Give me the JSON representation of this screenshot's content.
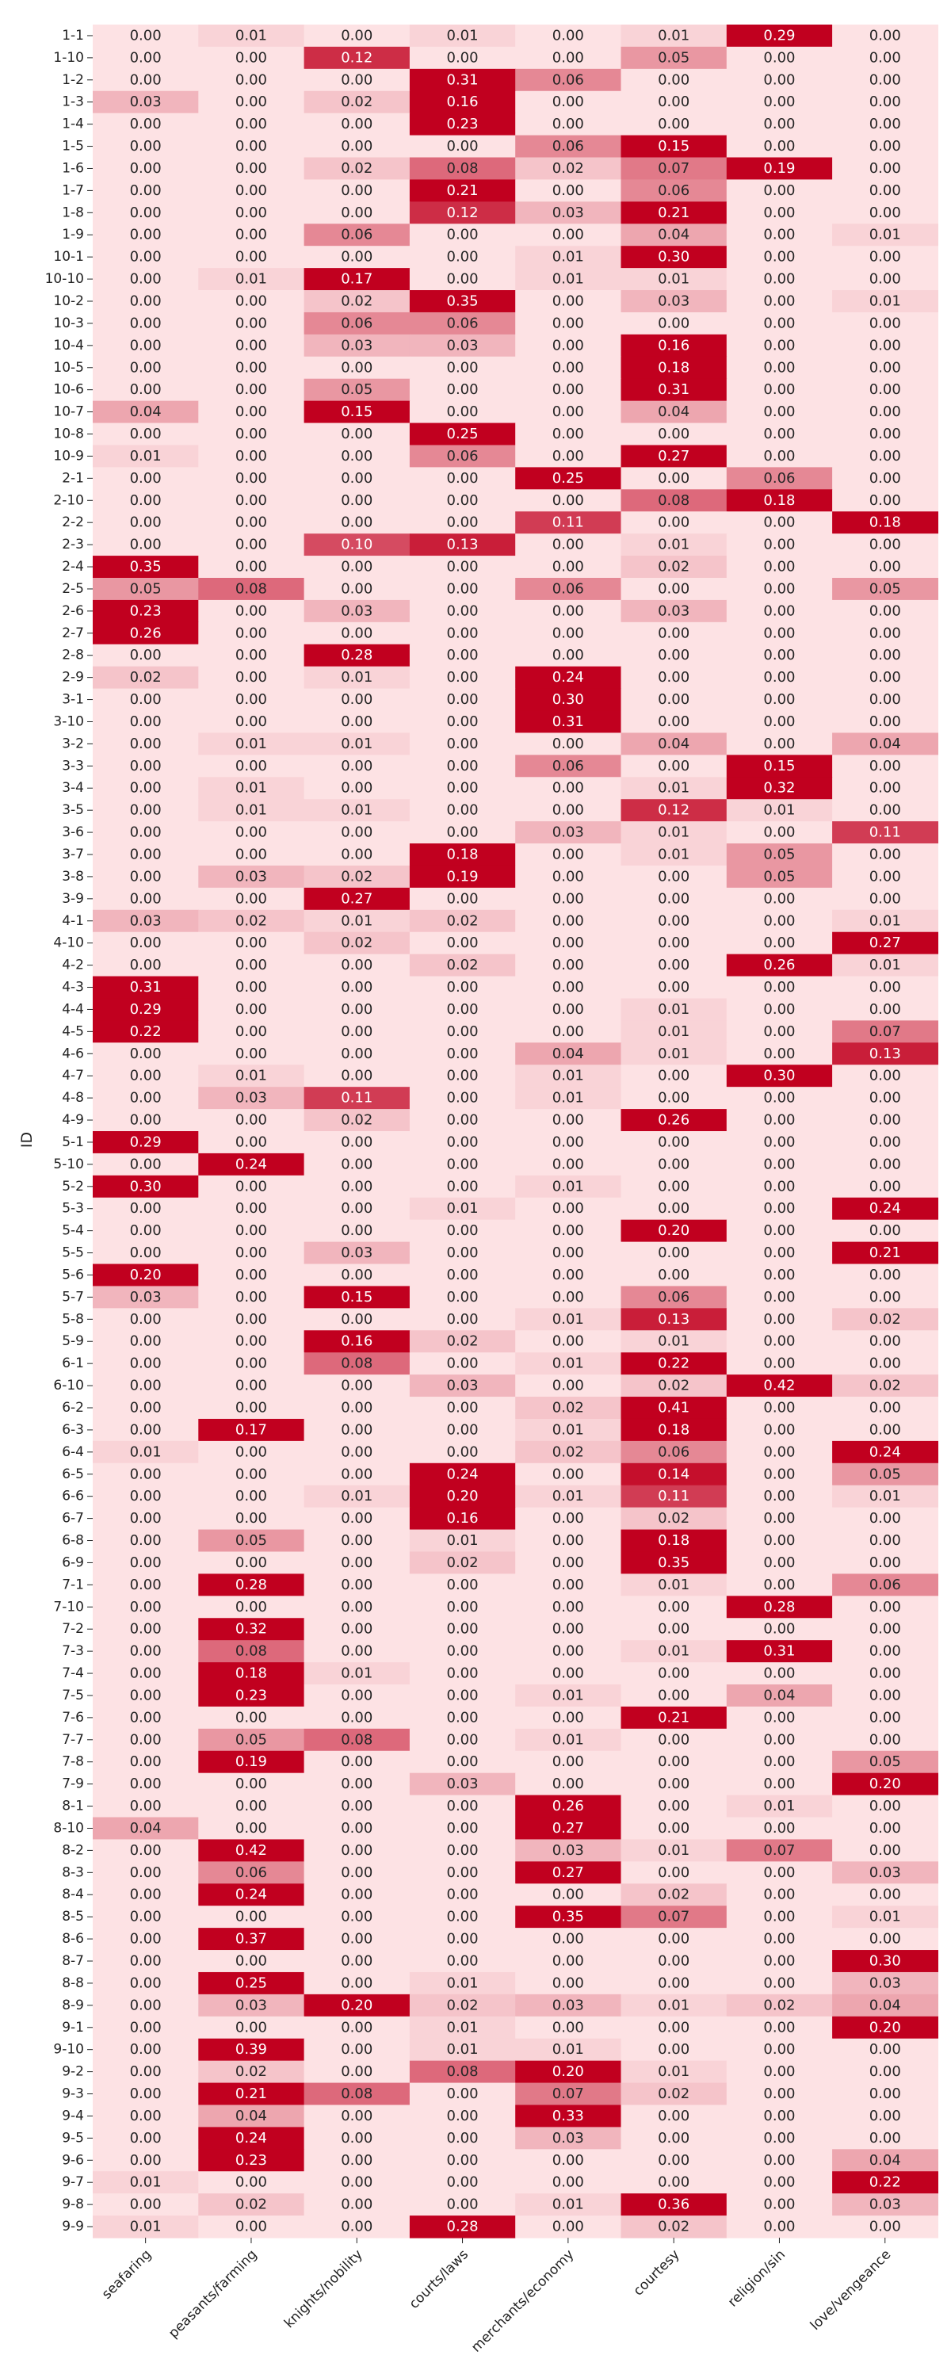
{
  "chart_data": {
    "type": "heatmap",
    "ylabel": "ID",
    "xlabel": "",
    "columns": [
      "seafaring",
      "peasants/farming",
      "knights/nobility",
      "courts/laws",
      "merchants/economy",
      "courtesy",
      "religion/sin",
      "love/vengeance"
    ],
    "rows": [
      "1-1",
      "1-10",
      "1-2",
      "1-3",
      "1-4",
      "1-5",
      "1-6",
      "1-7",
      "1-8",
      "1-9",
      "10-1",
      "10-10",
      "10-2",
      "10-3",
      "10-4",
      "10-5",
      "10-6",
      "10-7",
      "10-8",
      "10-9",
      "2-1",
      "2-10",
      "2-2",
      "2-3",
      "2-4",
      "2-5",
      "2-6",
      "2-7",
      "2-8",
      "2-9",
      "3-1",
      "3-10",
      "3-2",
      "3-3",
      "3-4",
      "3-5",
      "3-6",
      "3-7",
      "3-8",
      "3-9",
      "4-1",
      "4-10",
      "4-2",
      "4-3",
      "4-4",
      "4-5",
      "4-6",
      "4-7",
      "4-8",
      "4-9",
      "5-1",
      "5-10",
      "5-2",
      "5-3",
      "5-4",
      "5-5",
      "5-6",
      "5-7",
      "5-8",
      "5-9",
      "6-1",
      "6-10",
      "6-2",
      "6-3",
      "6-4",
      "6-5",
      "6-6",
      "6-7",
      "6-8",
      "6-9",
      "7-1",
      "7-10",
      "7-2",
      "7-3",
      "7-4",
      "7-5",
      "7-6",
      "7-7",
      "7-8",
      "7-9",
      "8-1",
      "8-10",
      "8-2",
      "8-3",
      "8-4",
      "8-5",
      "8-6",
      "8-7",
      "8-8",
      "8-9",
      "9-1",
      "9-10",
      "9-2",
      "9-3",
      "9-4",
      "9-5",
      "9-6",
      "9-7",
      "9-8",
      "9-9"
    ],
    "values": [
      [
        0.0,
        0.01,
        0.0,
        0.01,
        0.0,
        0.01,
        0.29,
        0.0
      ],
      [
        0.0,
        0.0,
        0.12,
        0.0,
        0.0,
        0.05,
        0.0,
        0.0
      ],
      [
        0.0,
        0.0,
        0.0,
        0.31,
        0.06,
        0.0,
        0.0,
        0.0
      ],
      [
        0.03,
        0.0,
        0.02,
        0.16,
        0.0,
        0.0,
        0.0,
        0.0
      ],
      [
        0.0,
        0.0,
        0.0,
        0.23,
        0.0,
        0.0,
        0.0,
        0.0
      ],
      [
        0.0,
        0.0,
        0.0,
        0.0,
        0.06,
        0.15,
        0.0,
        0.0
      ],
      [
        0.0,
        0.0,
        0.02,
        0.08,
        0.02,
        0.07,
        0.19,
        0.0
      ],
      [
        0.0,
        0.0,
        0.0,
        0.21,
        0.0,
        0.06,
        0.0,
        0.0
      ],
      [
        0.0,
        0.0,
        0.0,
        0.12,
        0.03,
        0.21,
        0.0,
        0.0
      ],
      [
        0.0,
        0.0,
        0.06,
        0.0,
        0.0,
        0.04,
        0.0,
        0.01
      ],
      [
        0.0,
        0.0,
        0.0,
        0.0,
        0.01,
        0.3,
        0.0,
        0.0
      ],
      [
        0.0,
        0.01,
        0.17,
        0.0,
        0.01,
        0.01,
        0.0,
        0.0
      ],
      [
        0.0,
        0.0,
        0.02,
        0.35,
        0.0,
        0.03,
        0.0,
        0.01
      ],
      [
        0.0,
        0.0,
        0.06,
        0.06,
        0.0,
        0.0,
        0.0,
        0.0
      ],
      [
        0.0,
        0.0,
        0.03,
        0.03,
        0.0,
        0.16,
        0.0,
        0.0
      ],
      [
        0.0,
        0.0,
        0.0,
        0.0,
        0.0,
        0.18,
        0.0,
        0.0
      ],
      [
        0.0,
        0.0,
        0.05,
        0.0,
        0.0,
        0.31,
        0.0,
        0.0
      ],
      [
        0.04,
        0.0,
        0.15,
        0.0,
        0.0,
        0.04,
        0.0,
        0.0
      ],
      [
        0.0,
        0.0,
        0.0,
        0.25,
        0.0,
        0.0,
        0.0,
        0.0
      ],
      [
        0.01,
        0.0,
        0.0,
        0.06,
        0.0,
        0.27,
        0.0,
        0.0
      ],
      [
        0.0,
        0.0,
        0.0,
        0.0,
        0.25,
        0.0,
        0.06,
        0.0
      ],
      [
        0.0,
        0.0,
        0.0,
        0.0,
        0.0,
        0.08,
        0.18,
        0.0
      ],
      [
        0.0,
        0.0,
        0.0,
        0.0,
        0.11,
        0.0,
        0.0,
        0.18
      ],
      [
        0.0,
        0.0,
        0.1,
        0.13,
        0.0,
        0.01,
        0.0,
        0.0
      ],
      [
        0.35,
        0.0,
        0.0,
        0.0,
        0.0,
        0.02,
        0.0,
        0.0
      ],
      [
        0.05,
        0.08,
        0.0,
        0.0,
        0.06,
        0.0,
        0.0,
        0.05
      ],
      [
        0.23,
        0.0,
        0.03,
        0.0,
        0.0,
        0.03,
        0.0,
        0.0
      ],
      [
        0.26,
        0.0,
        0.0,
        0.0,
        0.0,
        0.0,
        0.0,
        0.0
      ],
      [
        0.0,
        0.0,
        0.28,
        0.0,
        0.0,
        0.0,
        0.0,
        0.0
      ],
      [
        0.02,
        0.0,
        0.01,
        0.0,
        0.24,
        0.0,
        0.0,
        0.0
      ],
      [
        0.0,
        0.0,
        0.0,
        0.0,
        0.3,
        0.0,
        0.0,
        0.0
      ],
      [
        0.0,
        0.0,
        0.0,
        0.0,
        0.31,
        0.0,
        0.0,
        0.0
      ],
      [
        0.0,
        0.01,
        0.01,
        0.0,
        0.0,
        0.04,
        0.0,
        0.04
      ],
      [
        0.0,
        0.0,
        0.0,
        0.0,
        0.06,
        0.0,
        0.15,
        0.0
      ],
      [
        0.0,
        0.01,
        0.0,
        0.0,
        0.0,
        0.01,
        0.32,
        0.0
      ],
      [
        0.0,
        0.01,
        0.01,
        0.0,
        0.0,
        0.12,
        0.01,
        0.0
      ],
      [
        0.0,
        0.0,
        0.0,
        0.0,
        0.03,
        0.01,
        0.0,
        0.11
      ],
      [
        0.0,
        0.0,
        0.0,
        0.18,
        0.0,
        0.01,
        0.05,
        0.0
      ],
      [
        0.0,
        0.03,
        0.02,
        0.19,
        0.0,
        0.0,
        0.05,
        0.0
      ],
      [
        0.0,
        0.0,
        0.27,
        0.0,
        0.0,
        0.0,
        0.0,
        0.0
      ],
      [
        0.03,
        0.02,
        0.01,
        0.02,
        0.0,
        0.0,
        0.0,
        0.01
      ],
      [
        0.0,
        0.0,
        0.02,
        0.0,
        0.0,
        0.0,
        0.0,
        0.27
      ],
      [
        0.0,
        0.0,
        0.0,
        0.02,
        0.0,
        0.0,
        0.26,
        0.01
      ],
      [
        0.31,
        0.0,
        0.0,
        0.0,
        0.0,
        0.0,
        0.0,
        0.0
      ],
      [
        0.29,
        0.0,
        0.0,
        0.0,
        0.0,
        0.01,
        0.0,
        0.0
      ],
      [
        0.22,
        0.0,
        0.0,
        0.0,
        0.0,
        0.01,
        0.0,
        0.07
      ],
      [
        0.0,
        0.0,
        0.0,
        0.0,
        0.04,
        0.01,
        0.0,
        0.13
      ],
      [
        0.0,
        0.01,
        0.0,
        0.0,
        0.01,
        0.0,
        0.3,
        0.0
      ],
      [
        0.0,
        0.03,
        0.11,
        0.0,
        0.01,
        0.0,
        0.0,
        0.0
      ],
      [
        0.0,
        0.0,
        0.02,
        0.0,
        0.0,
        0.26,
        0.0,
        0.0
      ],
      [
        0.29,
        0.0,
        0.0,
        0.0,
        0.0,
        0.0,
        0.0,
        0.0
      ],
      [
        0.0,
        0.24,
        0.0,
        0.0,
        0.0,
        0.0,
        0.0,
        0.0
      ],
      [
        0.3,
        0.0,
        0.0,
        0.0,
        0.01,
        0.0,
        0.0,
        0.0
      ],
      [
        0.0,
        0.0,
        0.0,
        0.01,
        0.0,
        0.0,
        0.0,
        0.24
      ],
      [
        0.0,
        0.0,
        0.0,
        0.0,
        0.0,
        0.2,
        0.0,
        0.0
      ],
      [
        0.0,
        0.0,
        0.03,
        0.0,
        0.0,
        0.0,
        0.0,
        0.21
      ],
      [
        0.2,
        0.0,
        0.0,
        0.0,
        0.0,
        0.0,
        0.0,
        0.0
      ],
      [
        0.03,
        0.0,
        0.15,
        0.0,
        0.0,
        0.06,
        0.0,
        0.0
      ],
      [
        0.0,
        0.0,
        0.0,
        0.0,
        0.01,
        0.13,
        0.0,
        0.02
      ],
      [
        0.0,
        0.0,
        0.16,
        0.02,
        0.0,
        0.01,
        0.0,
        0.0
      ],
      [
        0.0,
        0.0,
        0.08,
        0.0,
        0.01,
        0.22,
        0.0,
        0.0
      ],
      [
        0.0,
        0.0,
        0.0,
        0.03,
        0.0,
        0.02,
        0.42,
        0.02
      ],
      [
        0.0,
        0.0,
        0.0,
        0.0,
        0.02,
        0.41,
        0.0,
        0.0
      ],
      [
        0.0,
        0.17,
        0.0,
        0.0,
        0.01,
        0.18,
        0.0,
        0.0
      ],
      [
        0.01,
        0.0,
        0.0,
        0.0,
        0.02,
        0.06,
        0.0,
        0.24
      ],
      [
        0.0,
        0.0,
        0.0,
        0.24,
        0.0,
        0.14,
        0.0,
        0.05
      ],
      [
        0.0,
        0.0,
        0.01,
        0.2,
        0.01,
        0.11,
        0.0,
        0.01
      ],
      [
        0.0,
        0.0,
        0.0,
        0.16,
        0.0,
        0.02,
        0.0,
        0.0
      ],
      [
        0.0,
        0.05,
        0.0,
        0.01,
        0.0,
        0.18,
        0.0,
        0.0
      ],
      [
        0.0,
        0.0,
        0.0,
        0.02,
        0.0,
        0.35,
        0.0,
        0.0
      ],
      [
        0.0,
        0.28,
        0.0,
        0.0,
        0.0,
        0.01,
        0.0,
        0.06
      ],
      [
        0.0,
        0.0,
        0.0,
        0.0,
        0.0,
        0.0,
        0.28,
        0.0
      ],
      [
        0.0,
        0.32,
        0.0,
        0.0,
        0.0,
        0.0,
        0.0,
        0.0
      ],
      [
        0.0,
        0.08,
        0.0,
        0.0,
        0.0,
        0.01,
        0.31,
        0.0
      ],
      [
        0.0,
        0.18,
        0.01,
        0.0,
        0.0,
        0.0,
        0.0,
        0.0
      ],
      [
        0.0,
        0.23,
        0.0,
        0.0,
        0.01,
        0.0,
        0.04,
        0.0
      ],
      [
        0.0,
        0.0,
        0.0,
        0.0,
        0.0,
        0.21,
        0.0,
        0.0
      ],
      [
        0.0,
        0.05,
        0.08,
        0.0,
        0.01,
        0.0,
        0.0,
        0.0
      ],
      [
        0.0,
        0.19,
        0.0,
        0.0,
        0.0,
        0.0,
        0.0,
        0.05
      ],
      [
        0.0,
        0.0,
        0.0,
        0.03,
        0.0,
        0.0,
        0.0,
        0.2
      ],
      [
        0.0,
        0.0,
        0.0,
        0.0,
        0.26,
        0.0,
        0.01,
        0.0
      ],
      [
        0.04,
        0.0,
        0.0,
        0.0,
        0.27,
        0.0,
        0.0,
        0.0
      ],
      [
        0.0,
        0.42,
        0.0,
        0.0,
        0.03,
        0.01,
        0.07,
        0.0
      ],
      [
        0.0,
        0.06,
        0.0,
        0.0,
        0.27,
        0.0,
        0.0,
        0.03
      ],
      [
        0.0,
        0.24,
        0.0,
        0.0,
        0.0,
        0.02,
        0.0,
        0.0
      ],
      [
        0.0,
        0.0,
        0.0,
        0.0,
        0.35,
        0.07,
        0.0,
        0.01
      ],
      [
        0.0,
        0.37,
        0.0,
        0.0,
        0.0,
        0.0,
        0.0,
        0.0
      ],
      [
        0.0,
        0.0,
        0.0,
        0.0,
        0.0,
        0.0,
        0.0,
        0.3
      ],
      [
        0.0,
        0.25,
        0.0,
        0.01,
        0.0,
        0.0,
        0.0,
        0.03
      ],
      [
        0.0,
        0.03,
        0.2,
        0.02,
        0.03,
        0.01,
        0.02,
        0.04
      ],
      [
        0.0,
        0.0,
        0.0,
        0.01,
        0.0,
        0.0,
        0.0,
        0.2
      ],
      [
        0.0,
        0.39,
        0.0,
        0.01,
        0.01,
        0.0,
        0.0,
        0.0
      ],
      [
        0.0,
        0.02,
        0.0,
        0.08,
        0.2,
        0.01,
        0.0,
        0.0
      ],
      [
        0.0,
        0.21,
        0.08,
        0.0,
        0.07,
        0.02,
        0.0,
        0.0
      ],
      [
        0.0,
        0.04,
        0.0,
        0.0,
        0.33,
        0.0,
        0.0,
        0.0
      ],
      [
        0.0,
        0.24,
        0.0,
        0.0,
        0.03,
        0.0,
        0.0,
        0.0
      ],
      [
        0.0,
        0.23,
        0.0,
        0.0,
        0.0,
        0.0,
        0.0,
        0.04
      ],
      [
        0.01,
        0.0,
        0.0,
        0.0,
        0.0,
        0.0,
        0.0,
        0.22
      ],
      [
        0.0,
        0.02,
        0.0,
        0.0,
        0.01,
        0.36,
        0.0,
        0.03
      ],
      [
        0.01,
        0.0,
        0.0,
        0.28,
        0.0,
        0.02,
        0.0,
        0.0
      ]
    ],
    "vmin": 0.0,
    "vmax": 0.15,
    "colors": {
      "low": "#fde2e4",
      "high": "#c1001f",
      "light_text": "#ffffff",
      "dark_text": "#262626"
    },
    "value_format": "2-decimal",
    "colorbar": false,
    "grid": false
  }
}
